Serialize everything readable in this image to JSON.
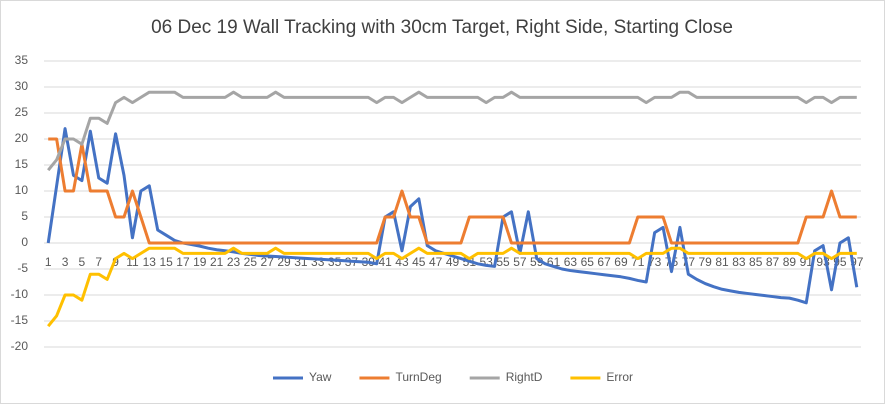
{
  "chart_data": {
    "type": "line",
    "title": "06 Dec 19 Wall Tracking with 30cm Target, Right Side, Starting Close",
    "categories": [
      1,
      null,
      3,
      null,
      5,
      null,
      7,
      null,
      9,
      null,
      11,
      null,
      13,
      null,
      15,
      null,
      17,
      null,
      19,
      null,
      21,
      null,
      23,
      null,
      25,
      null,
      27,
      null,
      29,
      null,
      31,
      null,
      33,
      null,
      35,
      null,
      37,
      null,
      39,
      null,
      41,
      null,
      43,
      null,
      45,
      null,
      47,
      null,
      49,
      null,
      51,
      null,
      53,
      null,
      55,
      null,
      57,
      null,
      59,
      null,
      61,
      null,
      63,
      null,
      65,
      null,
      67,
      null,
      69,
      null,
      71,
      null,
      73,
      null,
      75,
      null,
      77,
      null,
      79,
      null,
      81,
      null,
      83,
      null,
      85,
      null,
      87,
      null,
      89,
      null,
      91,
      null,
      93,
      null,
      95,
      null,
      97
    ],
    "series": [
      {
        "name": "Yaw",
        "color": "#4472c4",
        "values": [
          0,
          11,
          22,
          13,
          12,
          21.5,
          12.5,
          11.5,
          21,
          13,
          1,
          10,
          11,
          2.5,
          1.5,
          0.5,
          0,
          -0.3,
          -0.6,
          -1,
          -1.3,
          -1.5,
          -1.7,
          -2,
          -2.2,
          -2.4,
          -2.5,
          -2.6,
          -2.7,
          -2.8,
          -2.9,
          -3,
          -3.1,
          -3.2,
          -3.3,
          -3.4,
          -3.5,
          -3.6,
          -3.7,
          -4,
          5,
          6,
          -1.5,
          7,
          8.5,
          -0.5,
          -1.5,
          -2,
          -2.5,
          -3,
          -3.5,
          -4,
          -4.3,
          -4.5,
          5,
          6,
          -2,
          6,
          -3,
          -4,
          -4.5,
          -5,
          -5.3,
          -5.5,
          -5.7,
          -5.9,
          -6.1,
          -6.3,
          -6.5,
          -6.8,
          -7.2,
          -7.5,
          2,
          3,
          -5.5,
          3,
          -6,
          -7,
          -7.8,
          -8.4,
          -8.9,
          -9.2,
          -9.5,
          -9.7,
          -9.9,
          -10.1,
          -10.3,
          -10.5,
          -10.6,
          -11,
          -11.5,
          -1.5,
          -0.5,
          -9,
          0,
          1,
          -8.5
        ]
      },
      {
        "name": "TurnDeg",
        "color": "#ed7d31",
        "values": [
          20,
          20,
          10,
          10,
          19,
          10,
          10,
          10,
          5,
          5,
          10,
          5,
          0,
          0,
          0,
          0,
          0,
          0,
          0,
          0,
          0,
          0,
          0,
          0,
          0,
          0,
          0,
          0,
          0,
          0,
          0,
          0,
          0,
          0,
          0,
          0,
          0,
          0,
          0,
          0,
          5,
          5,
          10,
          5,
          5,
          0,
          0,
          0,
          0,
          0,
          5,
          5,
          5,
          5,
          5,
          0,
          0,
          0,
          0,
          0,
          0,
          0,
          0,
          0,
          0,
          0,
          0,
          0,
          0,
          0,
          5,
          5,
          5,
          5,
          0,
          0,
          0,
          0,
          0,
          0,
          0,
          0,
          0,
          0,
          0,
          0,
          0,
          0,
          0,
          0,
          5,
          5,
          5,
          10,
          5,
          5,
          5
        ]
      },
      {
        "name": "RightD",
        "color": "#a5a5a5",
        "values": [
          14,
          16,
          20,
          20,
          19,
          24,
          24,
          23,
          27,
          28,
          27,
          28,
          29,
          29,
          29,
          29,
          28,
          28,
          28,
          28,
          28,
          28,
          29,
          28,
          28,
          28,
          28,
          29,
          28,
          28,
          28,
          28,
          28,
          28,
          28,
          28,
          28,
          28,
          28,
          27,
          28,
          28,
          27,
          28,
          29,
          28,
          28,
          28,
          28,
          28,
          28,
          28,
          27,
          28,
          28,
          29,
          28,
          28,
          28,
          28,
          28,
          28,
          28,
          28,
          28,
          28,
          28,
          28,
          28,
          28,
          28,
          27,
          28,
          28,
          28,
          29,
          29,
          28,
          28,
          28,
          28,
          28,
          28,
          28,
          28,
          28,
          28,
          28,
          28,
          28,
          27,
          28,
          28,
          27,
          28,
          28,
          28
        ]
      },
      {
        "name": "Error",
        "color": "#ffc000",
        "values": [
          -16,
          -14,
          -10,
          -10,
          -11,
          -6,
          -6,
          -7,
          -3,
          -2,
          -3,
          -2,
          -1,
          -1,
          -1,
          -1,
          -2,
          -2,
          -2,
          -2,
          -2,
          -2,
          -1,
          -2,
          -2,
          -2,
          -2,
          -1,
          -2,
          -2,
          -2,
          -2,
          -2,
          -2,
          -2,
          -2,
          -2,
          -2,
          -2,
          -3,
          -2,
          -2,
          -3,
          -2,
          -1,
          -2,
          -2,
          -2,
          -2,
          -2,
          -3,
          -2,
          -2,
          -2,
          -2,
          -1,
          -2,
          -2,
          -2,
          -2,
          -2,
          -2,
          -2,
          -2,
          -2,
          -2,
          -2,
          -2,
          -2,
          -2,
          -3,
          -2,
          -2,
          -2,
          -1,
          -1,
          -2,
          -2,
          -2,
          -2,
          -2,
          -2,
          -2,
          -2,
          -2,
          -2,
          -2,
          -2,
          -2,
          -2,
          -3,
          -2,
          -2,
          -3,
          -2,
          -2,
          -2
        ]
      }
    ],
    "ylim": [
      -20,
      35
    ],
    "yticks": [
      -20,
      -15,
      -10,
      -5,
      0,
      5,
      10,
      15,
      20,
      25,
      30,
      35
    ],
    "grid": true,
    "legend": "bottom"
  }
}
